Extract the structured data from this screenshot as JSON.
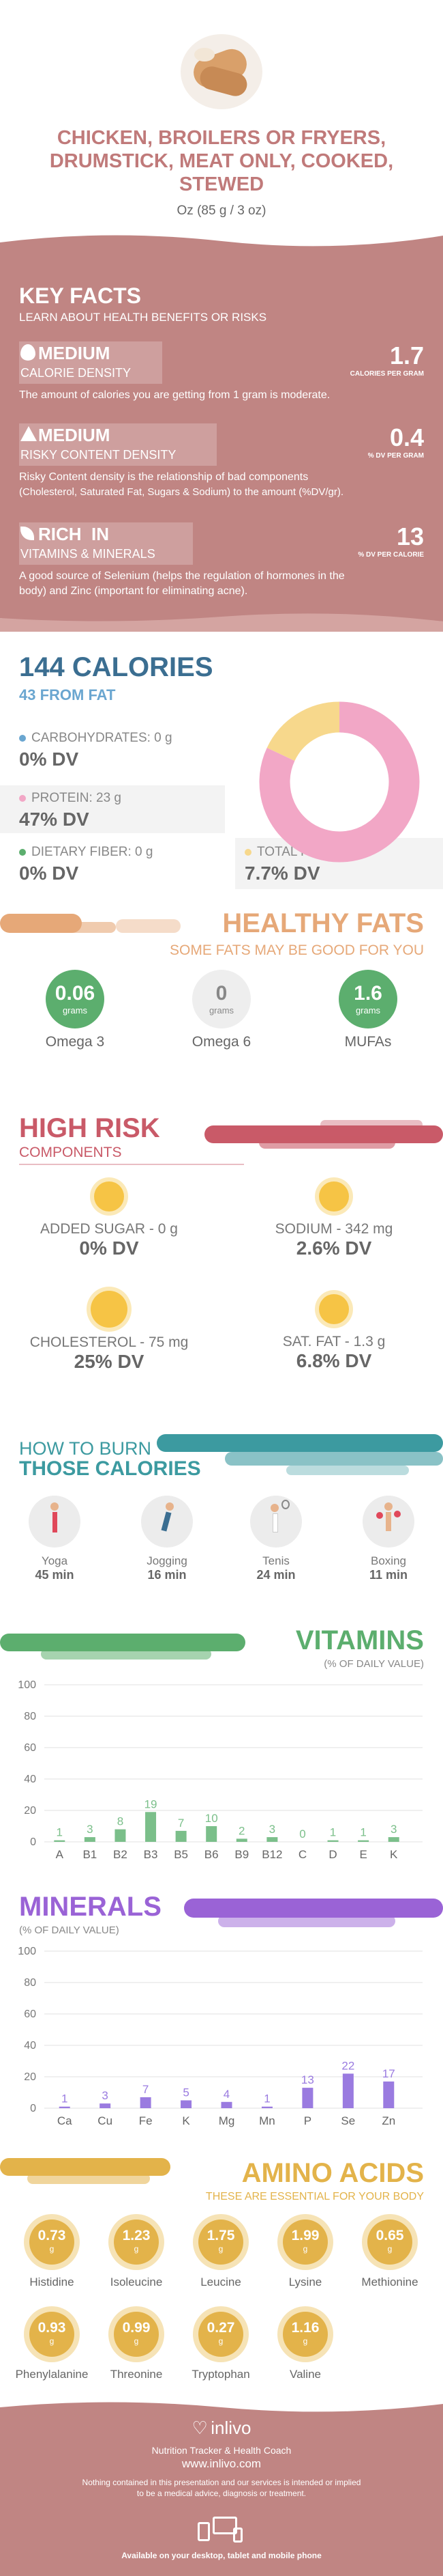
{
  "header": {
    "title_line1": "CHICKEN, BROILERS OR FRYERS,",
    "title_line2": "DRUMSTICK, MEAT ONLY, COOKED,",
    "title_line3": "STEWED",
    "serving": "Oz (85 g / 3 oz)"
  },
  "key_facts": {
    "title": "KEY FACTS",
    "subtitle": "LEARN ABOUT HEALTH BENEFITS OR RISKS",
    "cards": [
      {
        "level": "MEDIUM",
        "name": "CALORIE DENSITY",
        "value": "1.7",
        "unit": "CALORIES PER GRAM",
        "desc1": "The amount of calories you are getting from 1 gram is moderate.",
        "desc2": ""
      },
      {
        "level": "MEDIUM",
        "name": "RISKY CONTENT DENSITY",
        "value": "0.4",
        "unit": "% DV PER GRAM",
        "desc1": "Risky Content density is the relationship of bad components",
        "desc2": "(Cholesterol, Saturated Fat, Sugars & Sodium) to the amount (%DV/gr)."
      },
      {
        "level": "RICH  IN",
        "name": "VITAMINS & MINERALS",
        "value": "13",
        "unit": "% DV PER CALORIE",
        "desc1": "A good source of Selenium (helps the regulation of hormones in the",
        "desc2": "body) and Zinc (important for eliminating acne)."
      }
    ]
  },
  "calories": {
    "title": "144 CALORIES",
    "from_fat": "43 FROM FAT",
    "carb_label": "CARBOHYDRATES: 0 g",
    "carb_dv": "0% DV",
    "protein_label": "PROTEIN: 23 g",
    "protein_dv": "47% DV",
    "fiber_label": "DIETARY FIBER: 0 g",
    "fiber_dv": "0% DV",
    "fat_label": "TOTAL FAT: 4.9 g",
    "fat_dv": "7.7% DV",
    "donut": {
      "protein_frac": 0.82,
      "fat_frac": 0.18,
      "protein_color": "#f2a7c6",
      "fat_color": "#f7d88c"
    }
  },
  "healthy_fats": {
    "title": "HEALTHY FATS",
    "subtitle": "SOME FATS MAY BE GOOD FOR YOU",
    "items": [
      {
        "value": "0.06",
        "unit": "grams",
        "name": "Omega 3"
      },
      {
        "value": "0",
        "unit": "grams",
        "name": "Omega 6"
      },
      {
        "value": "1.6",
        "unit": "grams",
        "name": "MUFAs"
      }
    ]
  },
  "high_risk": {
    "title": "HIGH RISK",
    "subtitle": "COMPONENTS",
    "items": [
      {
        "label": "ADDED SUGAR - 0 g",
        "dv": "0% DV"
      },
      {
        "label": "SODIUM - 342 mg",
        "dv": "2.6% DV"
      },
      {
        "label": "CHOLESTEROL - 75 mg",
        "dv": "25% DV"
      },
      {
        "label": "SAT. FAT - 1.3 g",
        "dv": "6.8% DV"
      }
    ]
  },
  "burn": {
    "title1": "HOW TO BURN",
    "title2": "THOSE CALORIES",
    "items": [
      {
        "name": "Yoga",
        "time": "45 min"
      },
      {
        "name": "Jogging",
        "time": "16 min"
      },
      {
        "name": "Tenis",
        "time": "24 min"
      },
      {
        "name": "Boxing",
        "time": "11 min"
      }
    ]
  },
  "vitamins": {
    "title": "VITAMINS",
    "subtitle": "(% OF DAILY VALUE)"
  },
  "minerals": {
    "title": "MINERALS",
    "subtitle": "(% OF DAILY VALUE)"
  },
  "chart_data": [
    {
      "type": "bar",
      "title": "VITAMINS",
      "ylim": [
        0,
        100
      ],
      "yticks": [
        "0",
        "20",
        "40",
        "60",
        "80",
        "100"
      ],
      "categories": [
        "A",
        "B1",
        "B2",
        "B3",
        "B5",
        "B6",
        "B9",
        "B12",
        "C",
        "D",
        "E",
        "K"
      ],
      "values": [
        1,
        3,
        8,
        19,
        7,
        10,
        2,
        3,
        0,
        1,
        1,
        3
      ],
      "labels": [
        "1",
        "3",
        "8",
        "19",
        "7",
        "10",
        "2",
        "3",
        "0",
        "1",
        "1",
        "3"
      ],
      "color": "#7bbf8a"
    },
    {
      "type": "bar",
      "title": "MINERALS",
      "ylim": [
        0,
        100
      ],
      "yticks": [
        "0",
        "20",
        "40",
        "60",
        "80",
        "100"
      ],
      "categories": [
        "Ca",
        "Cu",
        "Fe",
        "K",
        "Mg",
        "Mn",
        "P",
        "Se",
        "Zn"
      ],
      "values": [
        1,
        3,
        7,
        5,
        4,
        1,
        13,
        22,
        17
      ],
      "labels": [
        "1",
        "3",
        "7",
        "5",
        "4",
        "1",
        "13",
        "22",
        "17"
      ],
      "color": "#9a7be0"
    }
  ],
  "amino": {
    "title": "AMINO ACIDS",
    "subtitle": "THESE ARE ESSENTIAL FOR YOUR BODY",
    "items": [
      {
        "v": "0.73",
        "u": "g",
        "n": "Histidine"
      },
      {
        "v": "1.23",
        "u": "g",
        "n": "Isoleucine"
      },
      {
        "v": "1.75",
        "u": "g",
        "n": "Leucine"
      },
      {
        "v": "1.99",
        "u": "g",
        "n": "Lysine"
      },
      {
        "v": "0.65",
        "u": "g",
        "n": "Methionine"
      },
      {
        "v": "0.93",
        "u": "g",
        "n": "Phenylalanine"
      },
      {
        "v": "0.99",
        "u": "g",
        "n": "Threonine"
      },
      {
        "v": "0.27",
        "u": "g",
        "n": "Tryptophan"
      },
      {
        "v": "1.16",
        "u": "g",
        "n": "Valine"
      }
    ]
  },
  "footer": {
    "brand": "inlivo",
    "tagline": "Nutrition Tracker & Health Coach",
    "url": "www.inlivo.com",
    "disclaimer1": "Nothing contained in this presentation and our services is intended or implied",
    "disclaimer2": "to be a medical advice, diagnosis or treatment.",
    "available": "Available on your desktop, tablet and mobile phone"
  }
}
